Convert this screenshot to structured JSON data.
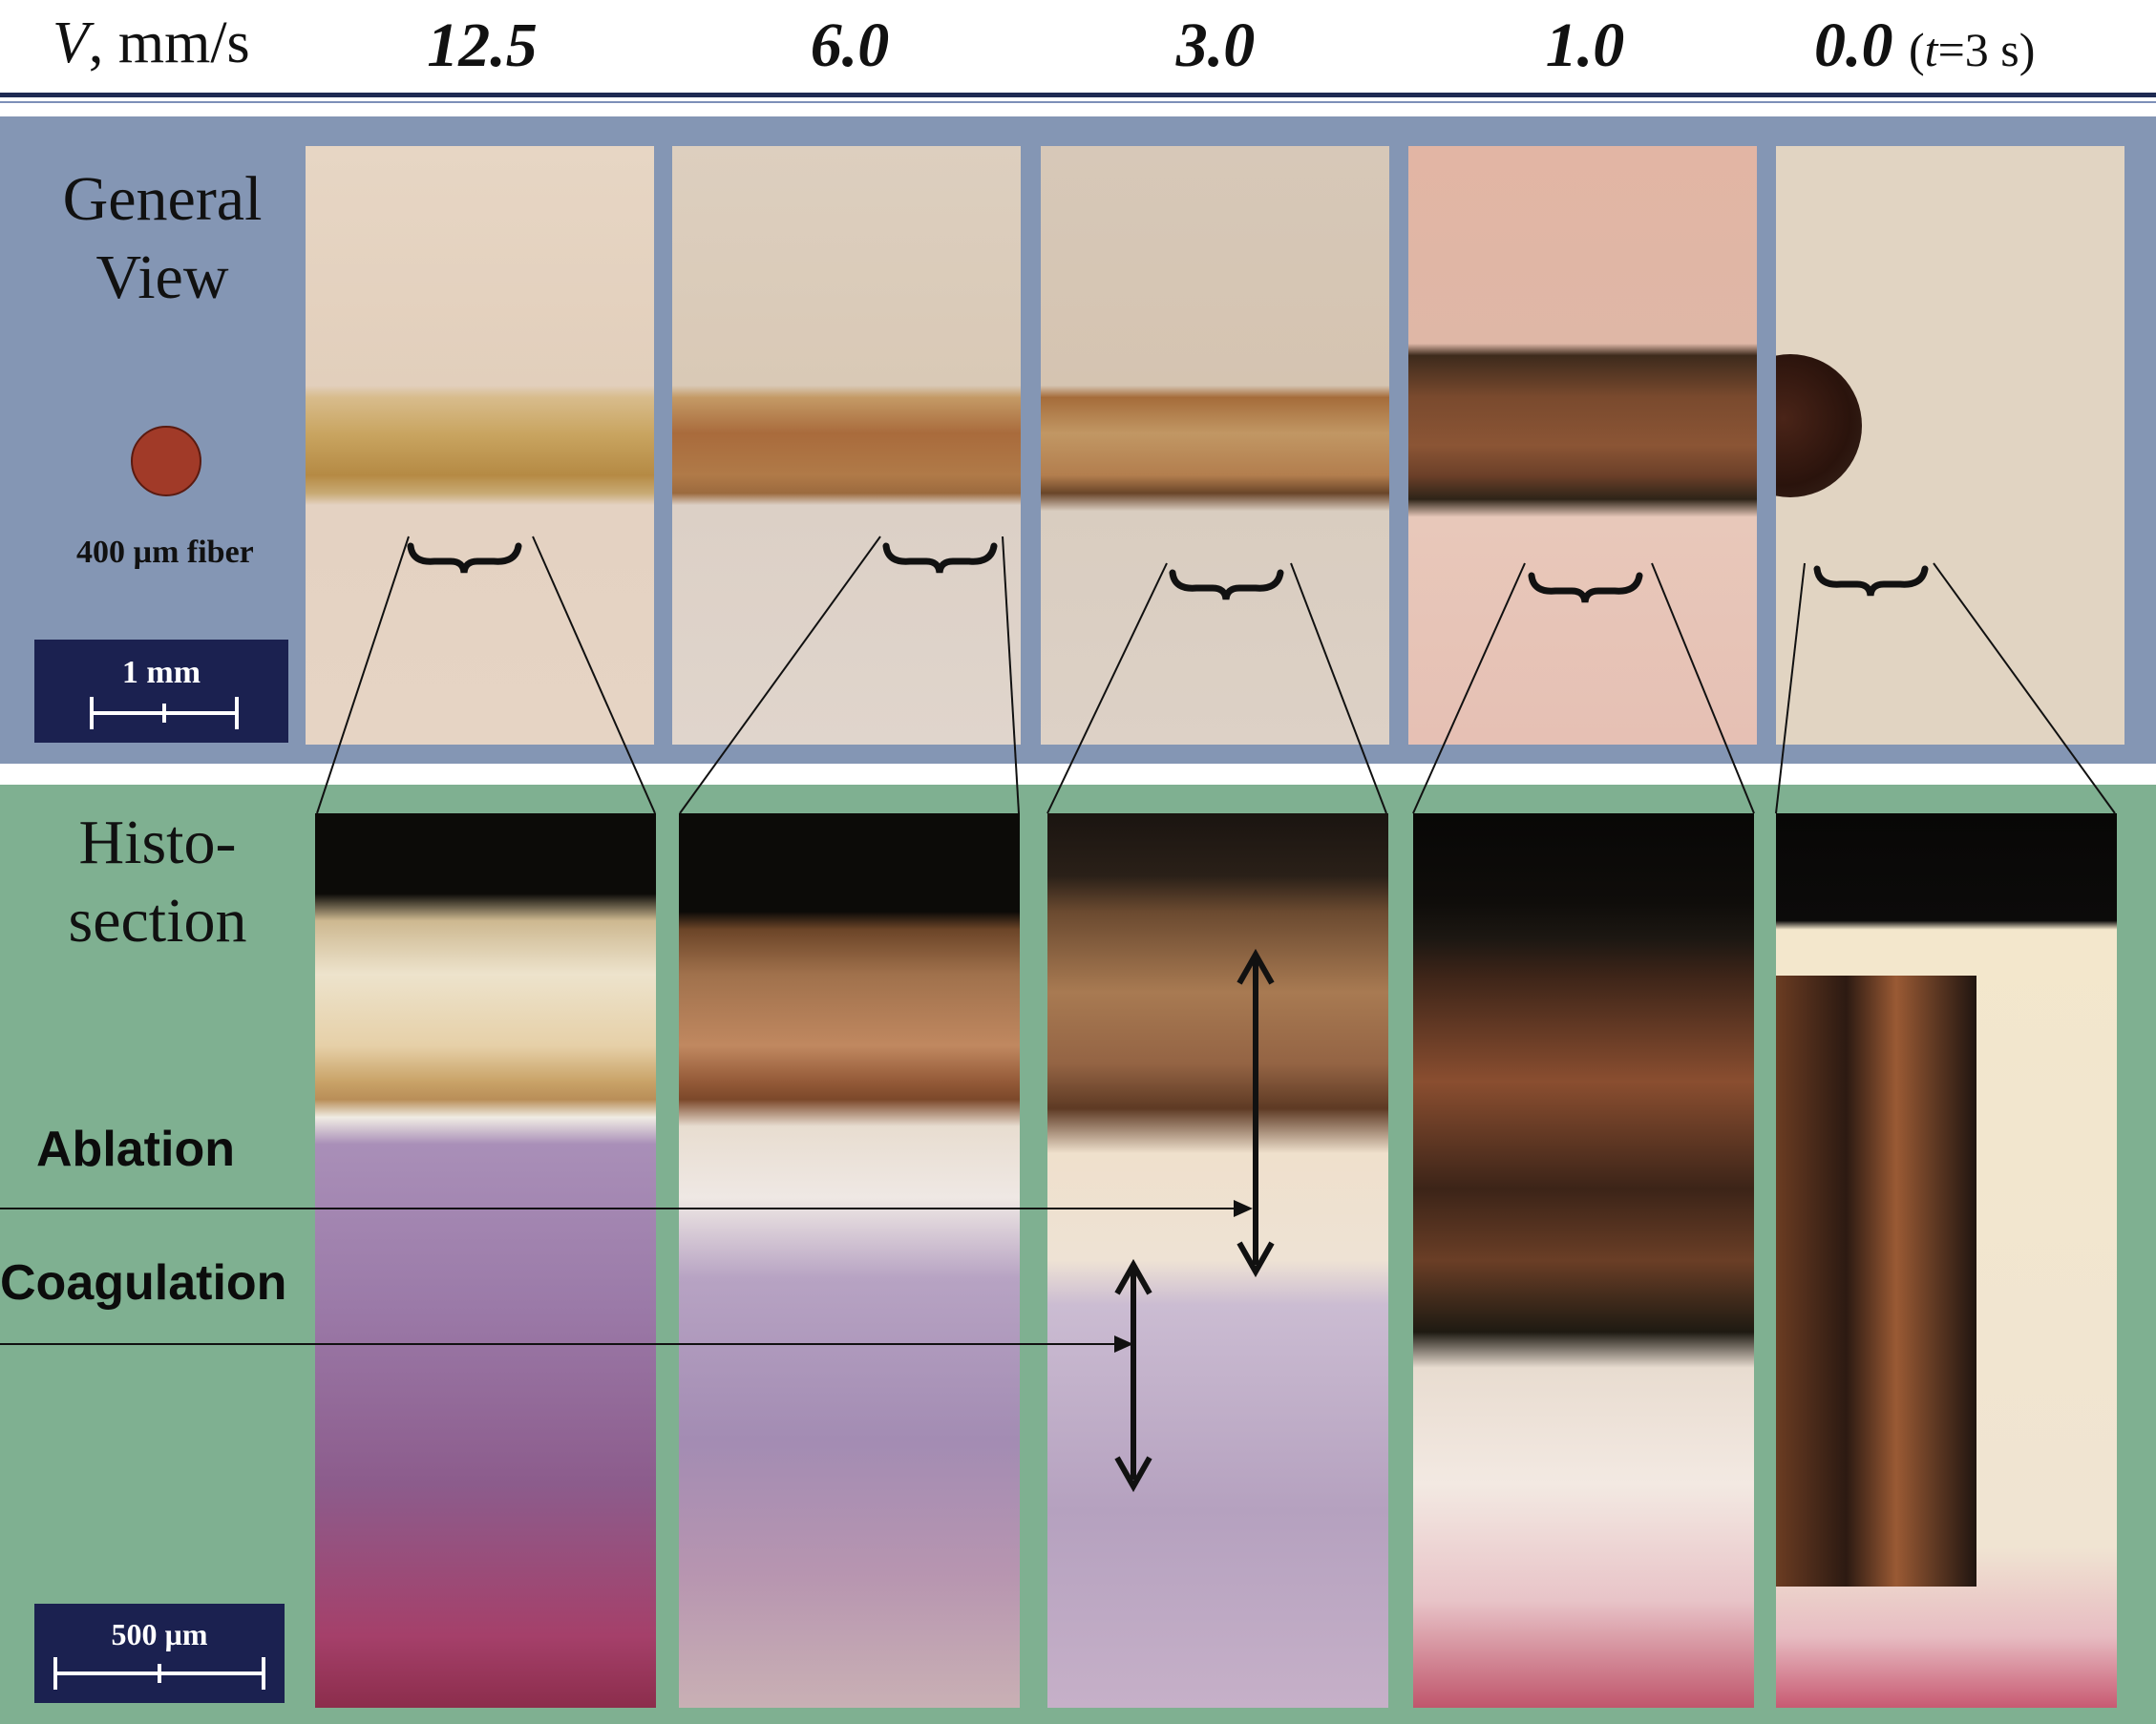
{
  "header": {
    "v_symbol": "V",
    "v_unit": ", mm/s",
    "speeds": [
      "12.5",
      "6.0",
      "3.0",
      "1.0",
      "0.0"
    ],
    "last_note_open": "(",
    "last_note_t": "t",
    "last_note_rest": "=3 s)"
  },
  "general_view": {
    "title_line1": "General",
    "title_line2": "View",
    "fiber_label": "400 µm fiber",
    "scale_label": "1 mm"
  },
  "histo": {
    "title_line1": "Histo-",
    "title_line2": "section",
    "ablation_label": "Ablation",
    "coagulation_label": "Coagulation",
    "scale_label": "500 µm"
  },
  "colors": {
    "general_view_bg": "#8496b4",
    "histo_bg": "#7fb091",
    "scale_box": "#1b2150",
    "header_rule": "#1e2a52",
    "fiber_dot": "#a13a28"
  }
}
